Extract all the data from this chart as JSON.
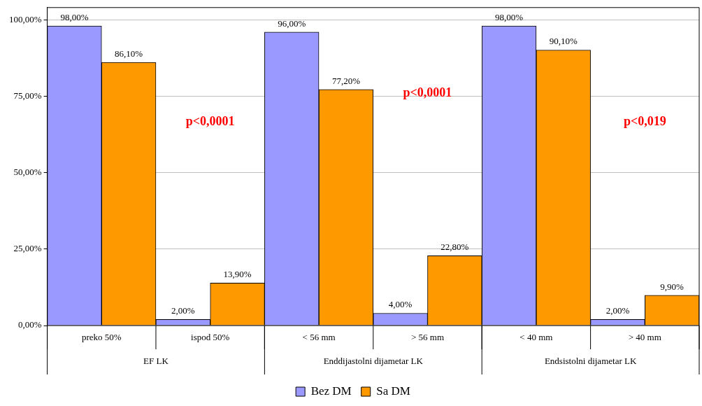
{
  "chart_data": {
    "type": "bar",
    "categories": [
      "preko 50%",
      "ispod 50%",
      "< 56 mm",
      "> 56 mm",
      "< 40 mm",
      "> 40 mm"
    ],
    "series": [
      {
        "name": "Bez DM",
        "color": "#9999ff",
        "values": [
          98,
          2,
          96,
          4,
          98,
          2
        ],
        "value_labels": [
          "98,00%",
          "2,00%",
          "96,00%",
          "4,00%",
          "98,00%",
          "2,00%"
        ]
      },
      {
        "name": "Sa DM",
        "color": "#ff9900",
        "values": [
          86.1,
          13.9,
          77.2,
          22.8,
          90.1,
          9.9
        ],
        "value_labels": [
          "86,10%",
          "13,90%",
          "77,20%",
          "22,80%",
          "90,10%",
          "9,90%"
        ]
      }
    ],
    "ylim": [
      0,
      104
    ],
    "yticks": [
      {
        "value": 0,
        "label": "0,00%"
      },
      {
        "value": 25,
        "label": "25,00%"
      },
      {
        "value": 50,
        "label": "50,00%"
      },
      {
        "value": 75,
        "label": "75,00%"
      },
      {
        "value": 100,
        "label": "100,00%"
      }
    ],
    "grid": "y",
    "legend": "bottom",
    "annotations": [
      "EF LK",
      "Enddijastolni dijametar LK",
      "Endsistolni dijametar LK",
      "p<0,0001",
      "p<0,0001",
      "p<0,019"
    ]
  }
}
